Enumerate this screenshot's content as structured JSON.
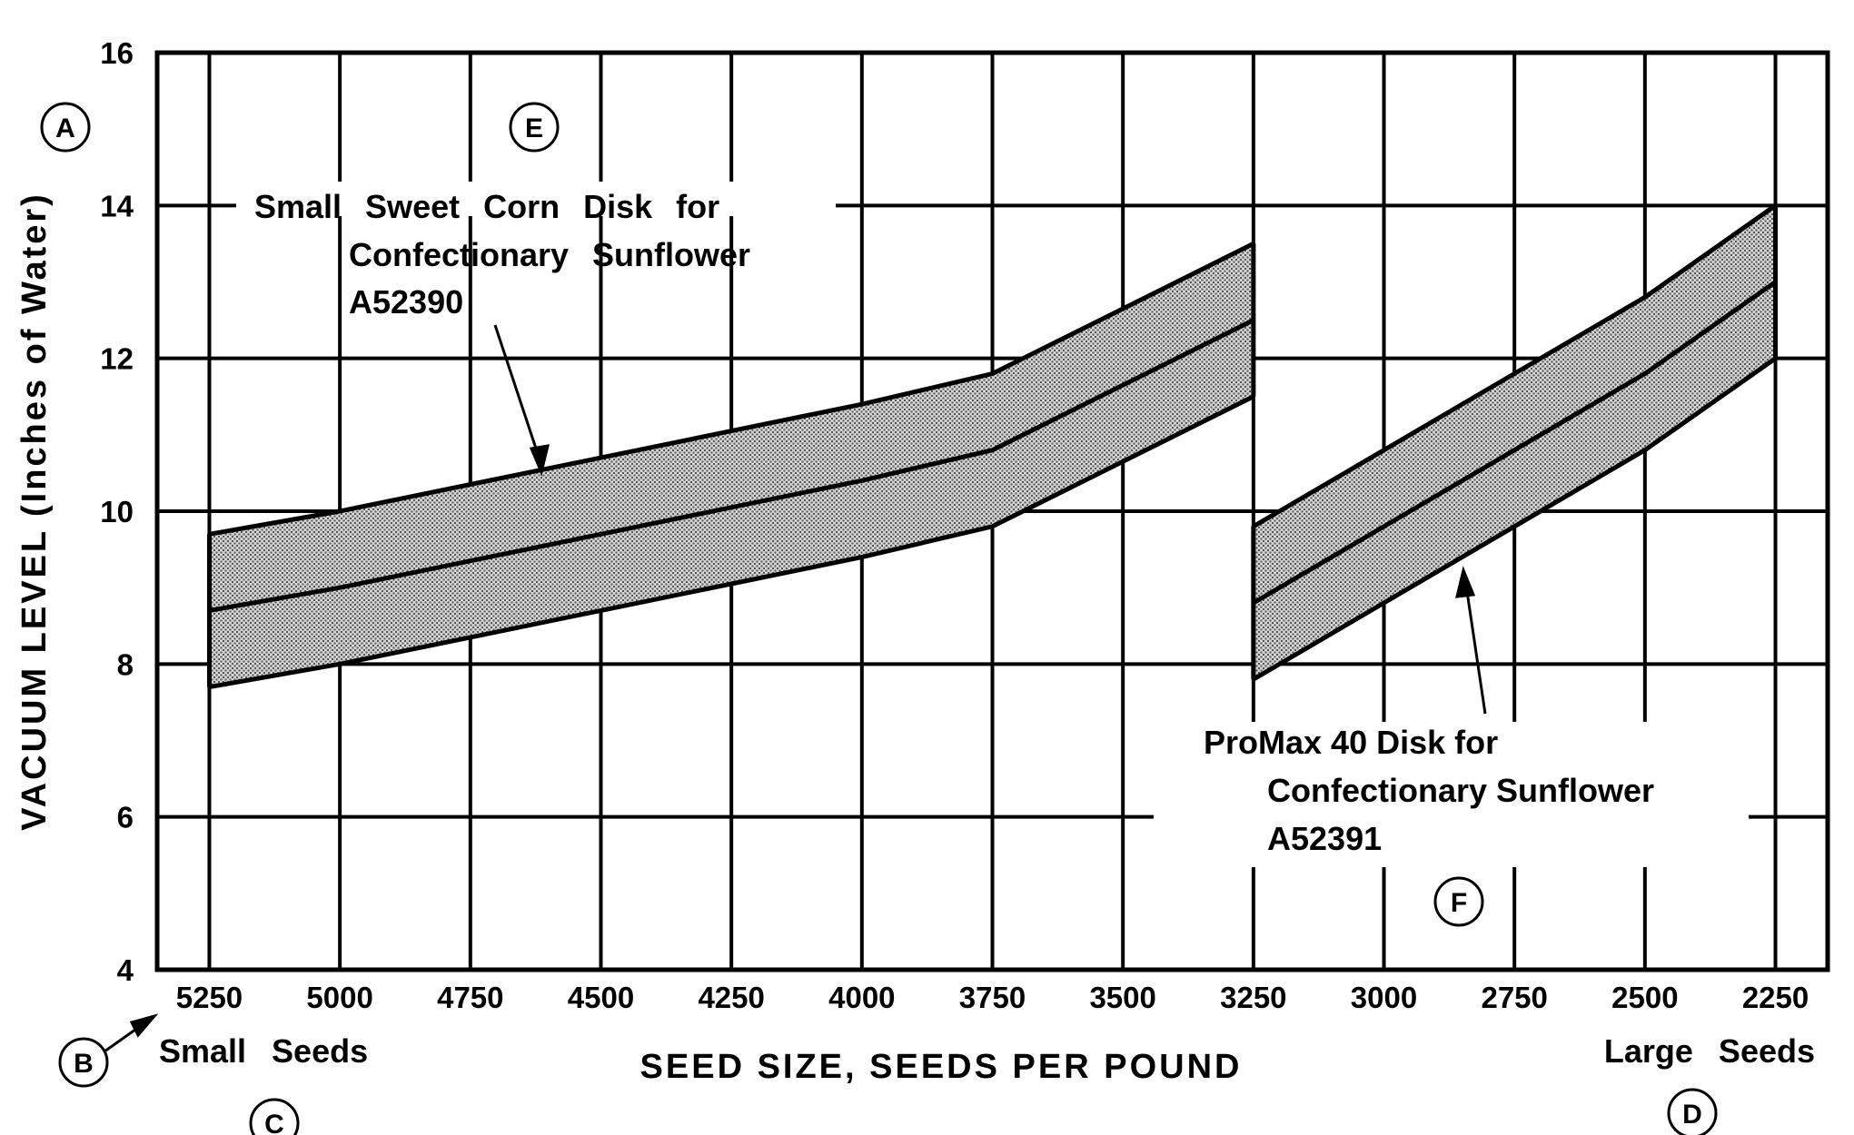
{
  "chart_data": {
    "type": "area",
    "ylabel": "VACUUM LEVEL (Inches of Water)",
    "xlabel": "SEED SIZE, SEEDS PER POUND",
    "x_ticks": [
      5250,
      5000,
      4750,
      4500,
      4250,
      4000,
      3750,
      3500,
      3250,
      3000,
      2750,
      2500,
      2250
    ],
    "y_ticks": [
      4,
      6,
      8,
      10,
      12,
      14,
      16
    ],
    "xlim": [
      5350,
      2150
    ],
    "ylim": [
      4,
      16
    ],
    "x_reversed": true,
    "grid": true,
    "x_end_labels": {
      "left": "Small Seeds",
      "right": "Large Seeds"
    },
    "series": [
      {
        "name": "Small Sweet Corn Disk for Confectionary Sunflower A52390",
        "label_lines": [
          "Small Sweet Corn Disk for",
          "Confectionary Sunflower",
          "A52390"
        ],
        "x": [
          5250,
          5000,
          4750,
          4500,
          4250,
          4000,
          3750,
          3500,
          3250
        ],
        "upper": [
          9.7,
          10.0,
          10.35,
          10.7,
          11.05,
          11.4,
          11.8,
          12.65,
          13.5
        ],
        "mid": [
          8.7,
          9.0,
          9.35,
          9.7,
          10.05,
          10.4,
          10.8,
          11.65,
          12.5
        ],
        "lower": [
          7.7,
          8.0,
          8.35,
          8.7,
          9.05,
          9.4,
          9.8,
          10.65,
          11.5
        ]
      },
      {
        "name": "ProMax 40 Disk for Confectionary Sunflower A52391",
        "label_lines": [
          "ProMax 40 Disk for",
          "Confectionary Sunflower",
          "A52391"
        ],
        "x": [
          3250,
          3000,
          2750,
          2500,
          2250
        ],
        "upper": [
          9.8,
          10.8,
          11.8,
          12.8,
          14.0
        ],
        "mid": [
          8.8,
          9.8,
          10.8,
          11.8,
          13.0
        ],
        "lower": [
          7.8,
          8.8,
          9.8,
          10.8,
          12.0
        ]
      }
    ],
    "callouts": [
      "A",
      "B",
      "C",
      "D",
      "E",
      "F"
    ]
  }
}
